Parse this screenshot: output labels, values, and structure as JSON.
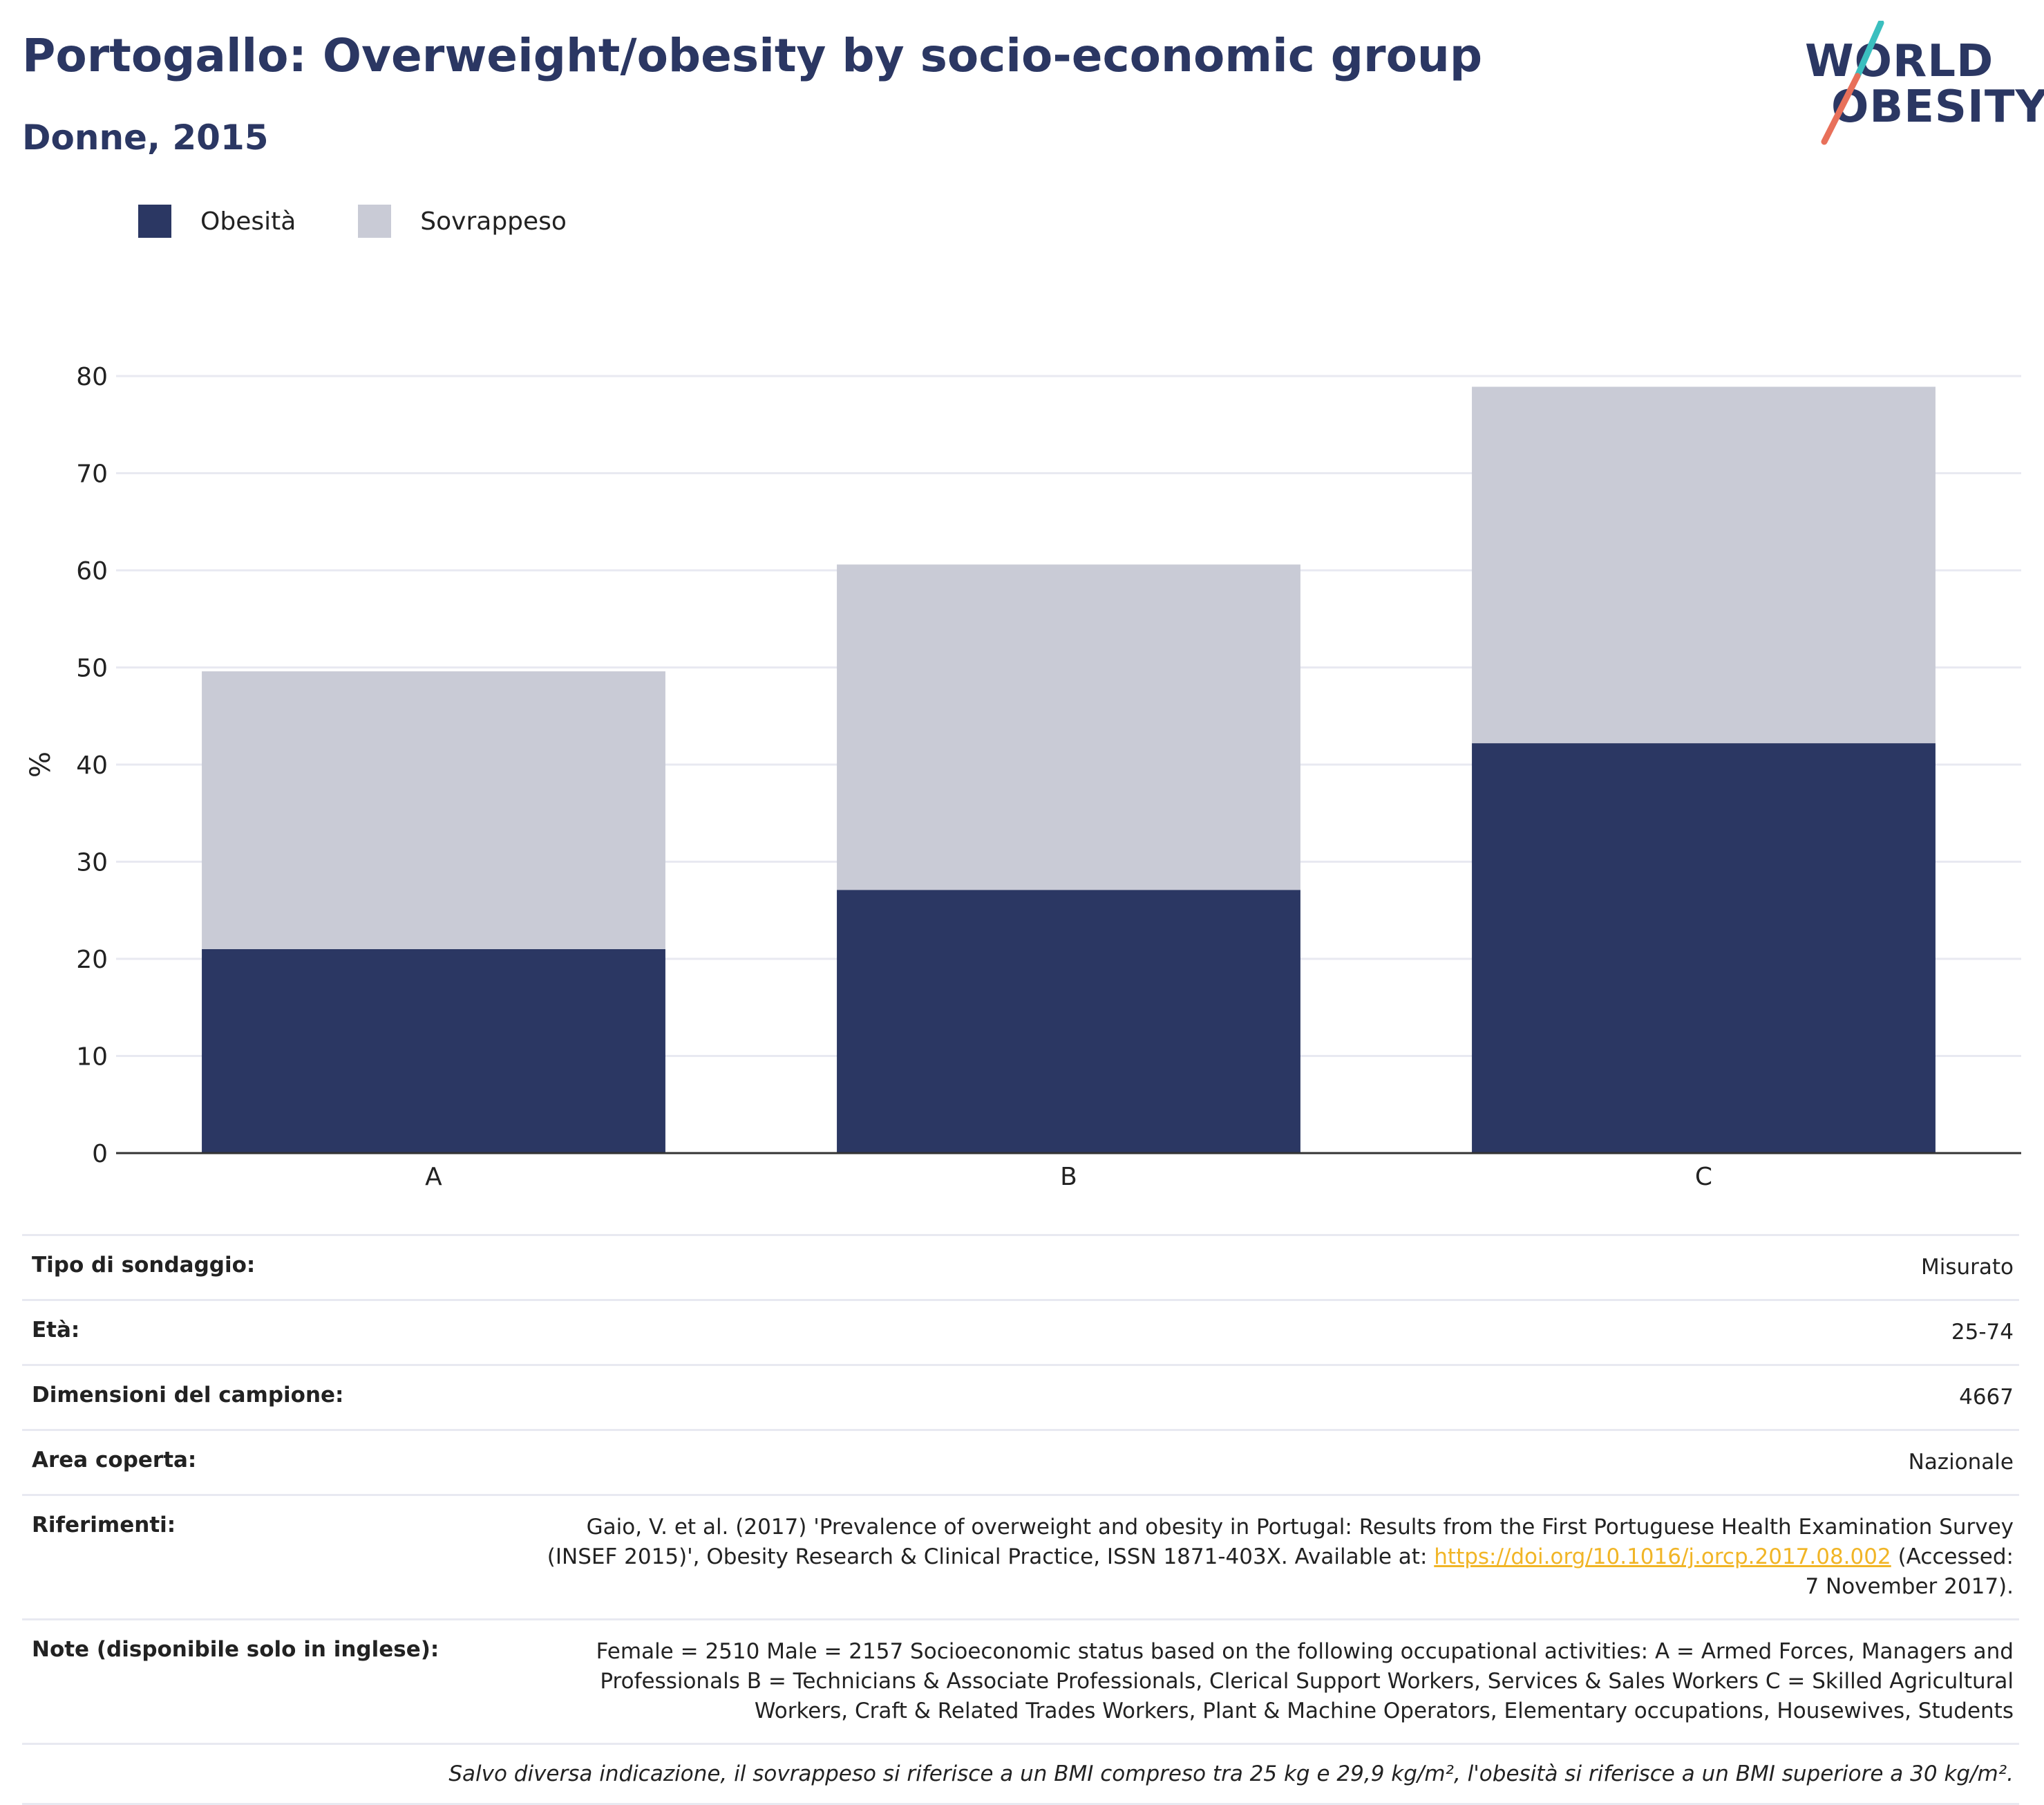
{
  "header": {
    "title": "Portogallo: Overweight/obesity by socio-economic group",
    "subtitle": "Donne, 2015"
  },
  "logo": {
    "line1": "WORLD",
    "line2": "OBESITY",
    "slash_color_top": "#3bbfbf",
    "slash_color_bottom": "#e8705a"
  },
  "colors": {
    "obesity": "#2b3763",
    "overweight": "#c9cbd6",
    "title": "#2b3763",
    "link": "#f1b526",
    "gridline": "#e8e9f1",
    "axis": "#333333"
  },
  "legend": [
    {
      "label": "Obesità",
      "color": "#2b3763"
    },
    {
      "label": "Sovrappeso",
      "color": "#c9cbd6"
    }
  ],
  "chart_data": {
    "type": "bar",
    "stacked": true,
    "categories": [
      "A",
      "B",
      "C"
    ],
    "series": [
      {
        "name": "Obesità",
        "values": [
          21.0,
          27.1,
          42.2
        ],
        "color": "#2b3763"
      },
      {
        "name": "Sovrappeso",
        "values": [
          28.6,
          33.5,
          36.7
        ],
        "color": "#c9cbd6"
      }
    ],
    "ylabel": "%",
    "xlabel": "",
    "ylim": [
      0,
      80
    ],
    "yticks": [
      0,
      10,
      20,
      30,
      40,
      50,
      60,
      70,
      80
    ],
    "grid": true,
    "legend_position": "top-left"
  },
  "info": {
    "survey_type": {
      "label": "Tipo di sondaggio:",
      "value": "Misurato"
    },
    "age": {
      "label": "Età:",
      "value": "25-74"
    },
    "sample_size": {
      "label": "Dimensioni del campione:",
      "value": "4667"
    },
    "coverage": {
      "label": "Area coperta:",
      "value": "Nazionale"
    },
    "references": {
      "label": "Riferimenti:",
      "text_before": "Gaio, V. et al. (2017) 'Prevalence of overweight and obesity in Portugal: Results from the First Portuguese Health Examination Survey (INSEF 2015)', Obesity Research & Clinical Practice, ISSN 1871-403X. Available at: ",
      "link": "https://doi.org/10.1016/j.orcp.2017.08.002",
      "text_after": " (Accessed: 7 November 2017)."
    },
    "notes": {
      "label": "Note (disponibile solo in inglese):",
      "value": "Female = 2510 Male = 2157 Socioeconomic status based on the following occupational activities: A = Armed Forces, Managers and Professionals B = Technicians & Associate Professionals, Clerical Support Workers, Services & Sales Workers C = Skilled Agricultural Workers, Craft & Related Trades Workers, Plant & Machine Operators, Elementary occupations, Housewives, Students"
    },
    "footnote": "Salvo diversa indicazione, il sovrappeso si riferisce a un BMI compreso tra 25 kg e 29,9 kg/m², l'obesità si riferisce a un BMI superiore a 30 kg/m²."
  }
}
